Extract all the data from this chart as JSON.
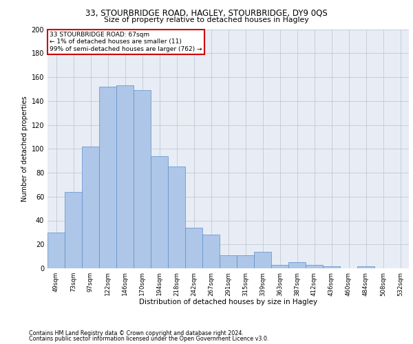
{
  "title1": "33, STOURBRIDGE ROAD, HAGLEY, STOURBRIDGE, DY9 0QS",
  "title2": "Size of property relative to detached houses in Hagley",
  "xlabel": "Distribution of detached houses by size in Hagley",
  "ylabel": "Number of detached properties",
  "categories": [
    "49sqm",
    "73sqm",
    "97sqm",
    "122sqm",
    "146sqm",
    "170sqm",
    "194sqm",
    "218sqm",
    "242sqm",
    "267sqm",
    "291sqm",
    "315sqm",
    "339sqm",
    "363sqm",
    "387sqm",
    "412sqm",
    "436sqm",
    "460sqm",
    "484sqm",
    "508sqm",
    "532sqm"
  ],
  "values": [
    30,
    64,
    102,
    152,
    153,
    149,
    94,
    85,
    34,
    28,
    11,
    11,
    14,
    3,
    5,
    3,
    2,
    0,
    2,
    0,
    0
  ],
  "bar_color": "#aec6e8",
  "bar_edge_color": "#5b8fc9",
  "annotation_line1": "33 STOURBRIDGE ROAD: 67sqm",
  "annotation_line2": "← 1% of detached houses are smaller (11)",
  "annotation_line3": "99% of semi-detached houses are larger (762) →",
  "annotation_box_color": "#ffffff",
  "annotation_box_edge_color": "#cc0000",
  "ylim": [
    0,
    200
  ],
  "yticks": [
    0,
    20,
    40,
    60,
    80,
    100,
    120,
    140,
    160,
    180,
    200
  ],
  "grid_color": "#c0c8d8",
  "bg_color": "#e8edf5",
  "footer1": "Contains HM Land Registry data © Crown copyright and database right 2024.",
  "footer2": "Contains public sector information licensed under the Open Government Licence v3.0."
}
